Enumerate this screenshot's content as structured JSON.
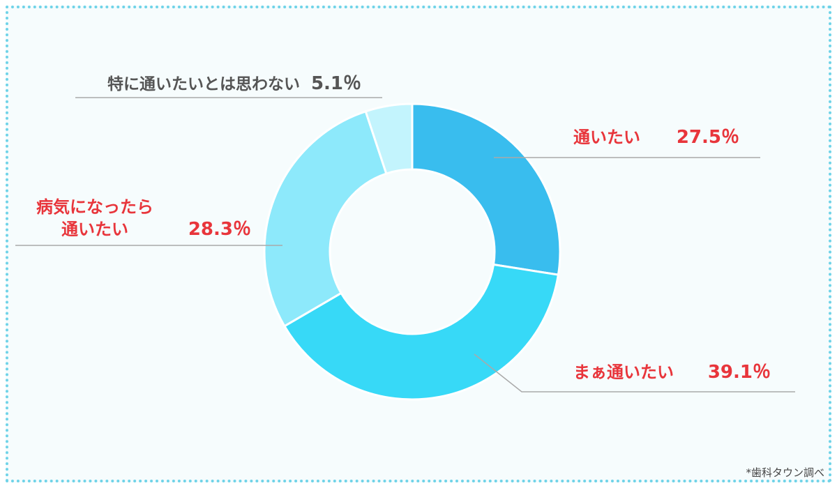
{
  "chart_data": {
    "type": "pie",
    "donut": true,
    "start_angle_deg": 0,
    "direction": "clockwise",
    "slices": [
      {
        "name": "通いたい",
        "label_lines": [
          "通いたい"
        ],
        "value": 27.5,
        "value_label": "27.5％",
        "color": "#39bdee",
        "label_color": "#e8353b"
      },
      {
        "name": "まぁ通いたい",
        "label_lines": [
          "まぁ通いたい"
        ],
        "value": 39.1,
        "value_label": "39.1％",
        "color": "#37d9f7",
        "label_color": "#e8353b"
      },
      {
        "name": "病気になったら通いたい",
        "label_lines": [
          "病気になったら",
          "通いたい"
        ],
        "value": 28.3,
        "value_label": "28.3％",
        "color": "#8de9fb",
        "label_color": "#e8353b"
      },
      {
        "name": "特に通いたいとは思わない",
        "label_lines": [
          "特に通いたいとは思わない"
        ],
        "value": 5.1,
        "value_label": "5.1％",
        "color": "#c3f4fd",
        "label_color": "#555555"
      }
    ]
  },
  "source_note": "*歯科タウン調べ"
}
